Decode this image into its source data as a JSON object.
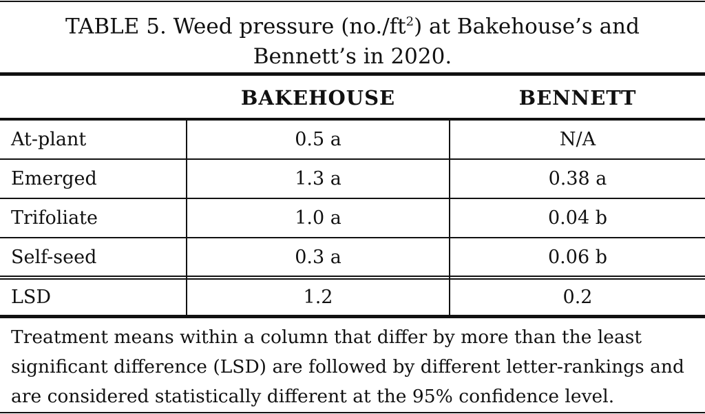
{
  "title": {
    "before": "TABLE 5. Weed pressure (no./ft",
    "superscript": "2",
    "after": ") at Bakehouse’s and Bennett’s in 2020."
  },
  "table": {
    "header": [
      "BAKEHOUSE",
      "BENNETT"
    ],
    "rows": [
      [
        "At-plant",
        "0.5 a",
        "N/A"
      ],
      [
        "Emerged",
        "1.3 a",
        "0.38 a"
      ],
      [
        "Trifoliate",
        "1.0 a",
        "0.04 b"
      ],
      [
        "Self-seed",
        "0.3 a",
        "0.06 b"
      ]
    ],
    "lsd": [
      "LSD",
      "1.2",
      "0.2"
    ]
  },
  "footnote": "Treatment means within a column that differ by more than the least significant difference (LSD) are followed by different letter-rankings and are considered statistically different at the 95% confidence level."
}
